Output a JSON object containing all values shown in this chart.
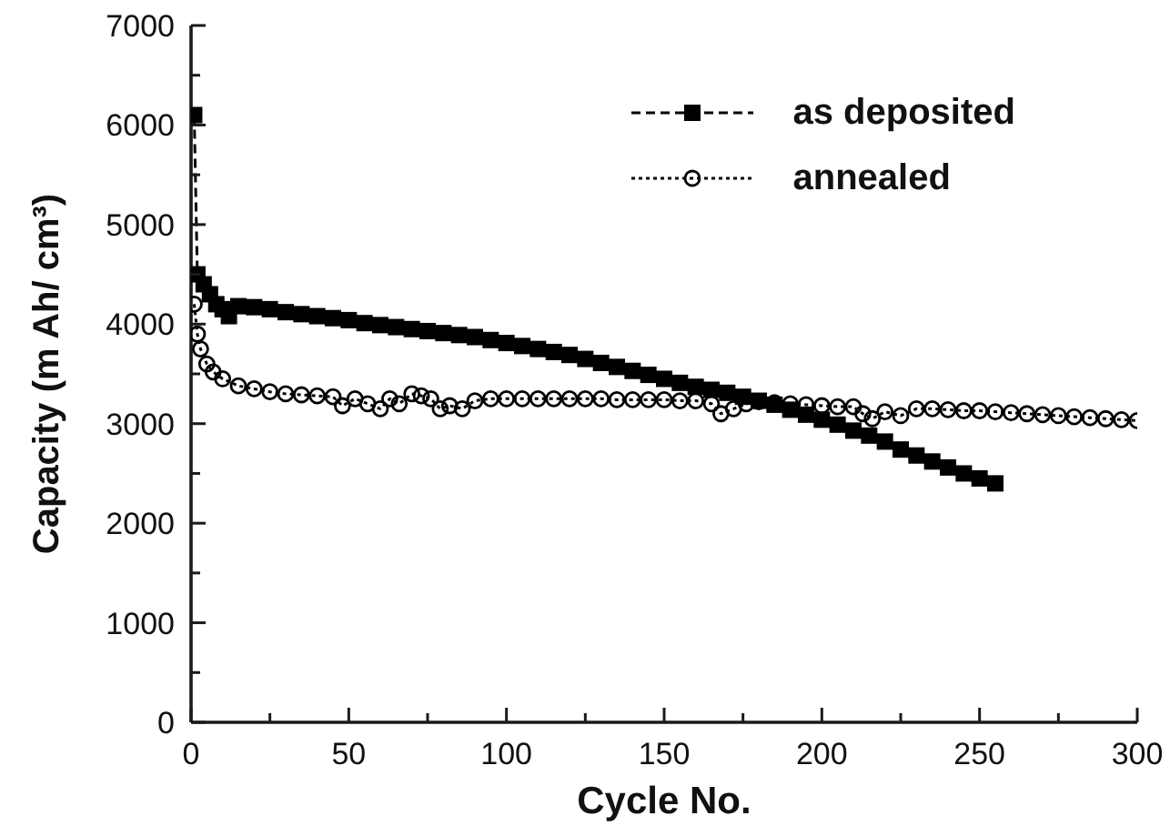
{
  "chart_data": {
    "type": "line",
    "xlabel": "Cycle No.",
    "ylabel": "Capacity (m Ah/ cm³)",
    "xlim": [
      0,
      300
    ],
    "ylim": [
      0,
      7000
    ],
    "xticks": [
      0,
      {
        "value": 25,
        "label": null
      },
      50,
      {
        "value": 75,
        "label": null
      },
      100,
      {
        "value": 125,
        "label": null
      },
      150,
      {
        "value": 175,
        "label": null
      },
      200,
      {
        "value": 225,
        "label": null
      },
      250,
      {
        "value": 275,
        "label": null
      },
      300
    ],
    "yticks": [
      0,
      {
        "value": 500,
        "label": null
      },
      1000,
      {
        "value": 1500,
        "label": null
      },
      2000,
      {
        "value": 2500,
        "label": null
      },
      3000,
      {
        "value": 3500,
        "label": null
      },
      4000,
      {
        "value": 4500,
        "label": null
      },
      5000,
      {
        "value": 5500,
        "label": null
      },
      6000,
      {
        "value": 6500,
        "label": null
      },
      7000
    ],
    "legend": "top right",
    "series": [
      {
        "name": "as deposited",
        "color": "#000000",
        "marker": "square",
        "line_style": "dashed",
        "x": [
          1,
          2,
          4,
          6,
          8,
          10,
          12,
          15,
          20,
          25,
          30,
          35,
          40,
          45,
          50,
          55,
          60,
          65,
          70,
          75,
          80,
          85,
          90,
          95,
          100,
          105,
          110,
          115,
          120,
          125,
          130,
          135,
          140,
          145,
          150,
          155,
          160,
          165,
          170,
          175,
          180,
          185,
          190,
          195,
          200,
          205,
          210,
          215,
          220,
          225,
          230,
          235,
          240,
          245,
          250,
          255
        ],
        "values": [
          6100,
          4500,
          4400,
          4300,
          4200,
          4150,
          4080,
          4180,
          4170,
          4150,
          4120,
          4100,
          4080,
          4060,
          4040,
          4010,
          3990,
          3970,
          3950,
          3930,
          3910,
          3890,
          3870,
          3840,
          3810,
          3780,
          3750,
          3720,
          3690,
          3650,
          3610,
          3570,
          3530,
          3490,
          3450,
          3410,
          3370,
          3340,
          3310,
          3270,
          3230,
          3190,
          3140,
          3090,
          3040,
          2990,
          2930,
          2880,
          2820,
          2740,
          2680,
          2620,
          2560,
          2500,
          2450,
          2400
        ]
      },
      {
        "name": "annealed",
        "color": "#000000",
        "marker": "circle",
        "line_style": "dotted",
        "x": [
          1,
          2,
          3,
          5,
          7,
          10,
          15,
          20,
          25,
          30,
          35,
          40,
          45,
          48,
          52,
          56,
          60,
          63,
          66,
          70,
          73,
          76,
          79,
          82,
          86,
          90,
          95,
          100,
          105,
          110,
          115,
          120,
          125,
          130,
          135,
          140,
          145,
          150,
          155,
          160,
          165,
          168,
          172,
          176,
          180,
          185,
          190,
          195,
          200,
          205,
          210,
          213,
          216,
          220,
          225,
          230,
          235,
          240,
          245,
          250,
          255,
          260,
          265,
          270,
          275,
          280,
          285,
          290,
          295,
          300
        ],
        "values": [
          4200,
          3900,
          3750,
          3600,
          3520,
          3450,
          3380,
          3350,
          3320,
          3300,
          3290,
          3280,
          3270,
          3180,
          3250,
          3200,
          3150,
          3250,
          3200,
          3300,
          3280,
          3250,
          3150,
          3180,
          3150,
          3230,
          3250,
          3250,
          3250,
          3250,
          3250,
          3250,
          3250,
          3250,
          3240,
          3240,
          3240,
          3240,
          3230,
          3230,
          3200,
          3100,
          3150,
          3200,
          3220,
          3210,
          3200,
          3190,
          3180,
          3170,
          3170,
          3100,
          3050,
          3120,
          3080,
          3150,
          3150,
          3140,
          3130,
          3130,
          3120,
          3110,
          3100,
          3090,
          3080,
          3070,
          3060,
          3050,
          3040,
          3030
        ]
      }
    ]
  }
}
